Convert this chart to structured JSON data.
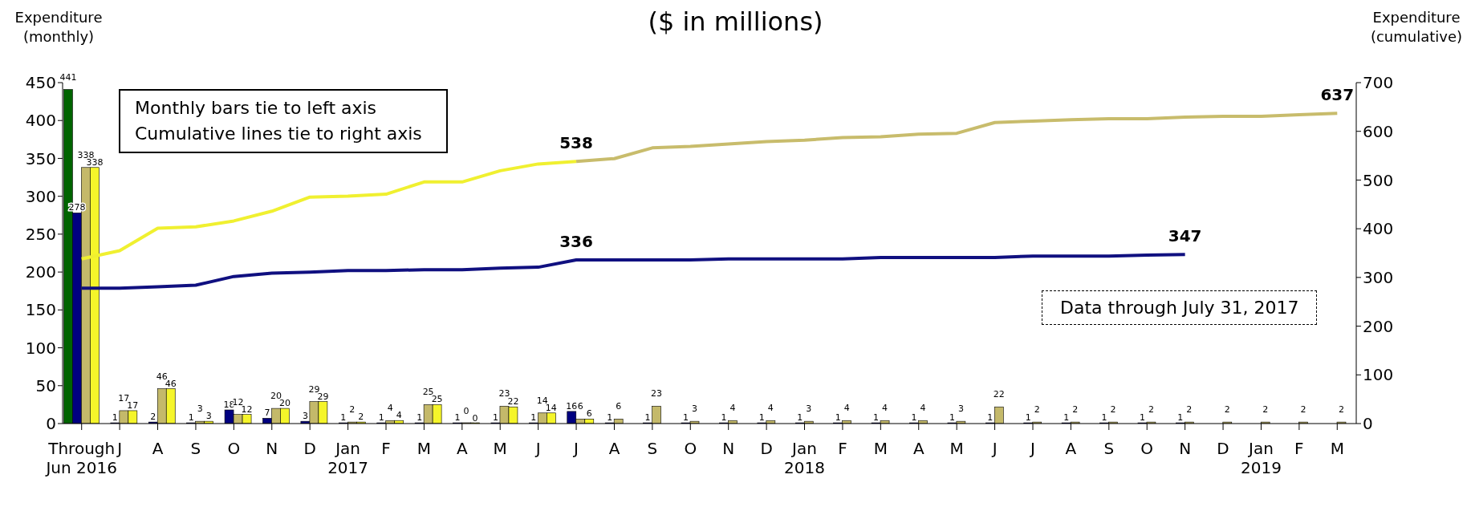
{
  "chart_data": {
    "type": "bar",
    "title": "($ in millions)",
    "ylabel": "Expenditure (monthly)",
    "y2label": "Expenditure (cumulative)",
    "categories": [
      "Through Jun 2016",
      "J",
      "A",
      "S",
      "O",
      "N",
      "D",
      "Jan 2017",
      "F",
      "M",
      "A",
      "M",
      "J",
      "J",
      "A",
      "S",
      "O",
      "N",
      "D",
      "Jan 2018",
      "F",
      "M",
      "A",
      "M",
      "J",
      "J",
      "A",
      "S",
      "O",
      "N",
      "D",
      "Jan 2019",
      "F",
      "M"
    ],
    "series": [
      {
        "color": "#006400",
        "values": [
          441,
          null,
          null,
          null,
          null,
          null,
          null,
          null,
          null,
          null,
          null,
          null,
          null,
          null,
          null,
          null,
          null,
          null,
          null,
          null,
          null,
          null,
          null,
          null,
          null,
          null,
          null,
          null,
          null,
          null,
          null,
          null,
          null,
          null
        ],
        "value_labels": [
          "441",
          null,
          null,
          null,
          null,
          null,
          null,
          null,
          null,
          null,
          null,
          null,
          null,
          null,
          null,
          null,
          null,
          null,
          null,
          null,
          null,
          null,
          null,
          null,
          null,
          null,
          null,
          null,
          null,
          null,
          null,
          null,
          null,
          null
        ]
      },
      {
        "color": "#000080",
        "values": [
          278,
          1,
          2,
          1,
          18,
          7,
          3,
          1,
          1,
          1,
          1,
          1,
          1,
          16,
          1,
          1,
          1,
          1,
          1,
          1,
          1,
          1,
          1,
          1,
          1,
          1,
          1,
          1,
          1,
          1,
          null,
          null,
          null,
          null
        ],
        "value_labels": [
          "278",
          "1",
          "2",
          "1",
          "18",
          "7",
          "3",
          "1",
          "1",
          "1",
          "1",
          "1",
          "1",
          "16",
          "1",
          "1",
          "1",
          "1",
          "1",
          "1",
          "1",
          "1",
          "1",
          "1",
          "1",
          "1",
          "1",
          "1",
          "1",
          "1",
          null,
          null,
          null,
          null
        ]
      },
      {
        "color": "#c4b96a",
        "values": [
          338,
          17,
          46,
          3,
          12,
          20,
          29,
          2,
          4,
          25,
          0,
          23,
          14,
          6,
          6,
          23,
          3,
          4,
          4,
          3,
          4,
          4,
          4,
          3,
          22,
          2,
          2,
          2,
          2,
          2,
          2,
          2,
          2,
          2
        ],
        "value_labels": [
          "338",
          "17",
          "46",
          "3",
          "12",
          "20",
          "29",
          "2",
          "4",
          "25",
          "0",
          "23",
          "14",
          "6",
          "6",
          "23",
          "3",
          "4",
          "4",
          "3",
          "4",
          "4",
          "4",
          "3",
          "22",
          "2",
          "2",
          "2",
          "2",
          "2",
          "2",
          "2",
          "2",
          "2"
        ]
      },
      {
        "color": "#f5f52a",
        "values": [
          338,
          17,
          46,
          3,
          12,
          20,
          29,
          2,
          4,
          25,
          0,
          22,
          14,
          6,
          null,
          null,
          null,
          null,
          null,
          null,
          null,
          null,
          null,
          null,
          null,
          null,
          null,
          null,
          null,
          null,
          null,
          null,
          null,
          null
        ],
        "value_labels": [
          "338",
          "17",
          "46",
          "3",
          "12",
          "20",
          "29",
          "2",
          "4",
          "25",
          "0",
          "22",
          "14",
          "6",
          null,
          null,
          null,
          null,
          null,
          null,
          null,
          null,
          null,
          null,
          null,
          null,
          null,
          null,
          null,
          null,
          null,
          null,
          null,
          null
        ]
      },
      {
        "type": "line",
        "axis": "y2",
        "color": "#f0f030",
        "values": [
          338,
          355,
          401,
          404,
          416,
          436,
          465,
          467,
          471,
          496,
          496,
          519,
          533,
          538,
          null,
          null,
          null,
          null,
          null,
          null,
          null,
          null,
          null,
          null,
          null,
          null,
          null,
          null,
          null,
          null,
          null,
          null,
          null,
          null
        ],
        "value_labels": [
          null,
          null,
          null,
          null,
          null,
          null,
          null,
          null,
          null,
          null,
          null,
          null,
          null,
          "538",
          null,
          null,
          null,
          null,
          null,
          null,
          null,
          null,
          null,
          null,
          null,
          null,
          null,
          null,
          null,
          null,
          null,
          null,
          null,
          null
        ]
      },
      {
        "type": "line",
        "axis": "y2",
        "color": "#c8bc6c",
        "values": [
          null,
          null,
          null,
          null,
          null,
          null,
          null,
          null,
          null,
          null,
          null,
          null,
          null,
          538,
          544,
          566,
          569,
          574,
          579,
          582,
          587,
          589,
          594,
          596,
          618,
          621,
          624,
          626,
          626,
          629,
          631,
          631,
          634,
          637
        ],
        "value_labels": [
          null,
          null,
          null,
          null,
          null,
          null,
          null,
          null,
          null,
          null,
          null,
          null,
          null,
          null,
          null,
          null,
          null,
          null,
          null,
          null,
          null,
          null,
          null,
          null,
          null,
          null,
          null,
          null,
          null,
          null,
          null,
          null,
          null,
          "637"
        ]
      },
      {
        "type": "line",
        "axis": "y2",
        "color": "#101080",
        "values": [
          278,
          278,
          281,
          284,
          302,
          309,
          311,
          314,
          314,
          316,
          316,
          319,
          321,
          336,
          336,
          336,
          336,
          338,
          338,
          338,
          338,
          341,
          341,
          341,
          341,
          344,
          344,
          344,
          346,
          347,
          null,
          null,
          null,
          null
        ],
        "value_labels": [
          null,
          null,
          null,
          null,
          null,
          null,
          null,
          null,
          null,
          null,
          null,
          null,
          null,
          "336",
          null,
          null,
          null,
          null,
          null,
          null,
          null,
          null,
          null,
          null,
          null,
          null,
          null,
          null,
          null,
          "347",
          null,
          null,
          null,
          null
        ]
      }
    ],
    "ylim": [
      0,
      450
    ],
    "yticks": [
      0,
      50,
      100,
      150,
      200,
      250,
      300,
      350,
      400,
      450
    ],
    "y2lim": [
      0,
      700
    ],
    "y2ticks": [
      0,
      100,
      200,
      300,
      400,
      500,
      600,
      700
    ],
    "annotations": [
      "Monthly bars tie to left axis\nCumulative lines tie to right axis",
      "Data through July 31, 2017"
    ],
    "grid": false,
    "legend": false
  }
}
